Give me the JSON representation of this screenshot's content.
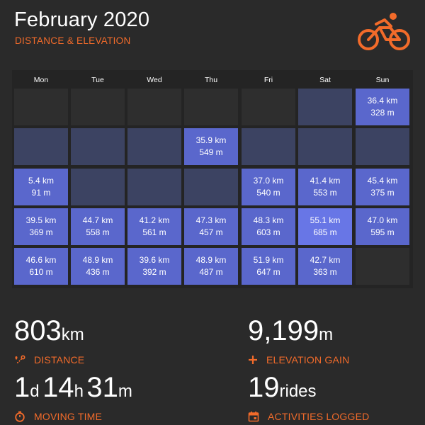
{
  "header": {
    "title": "February 2020",
    "subtitle": "DISTANCE & ELEVATION",
    "logo_icon": "cyclist-icon"
  },
  "colors": {
    "accent": "#f26b2a",
    "background": "#2a2a2a",
    "cell_empty": "#2e2e2e",
    "cell_no_ride": "#3c4362",
    "cell_ride": "#5a67cc",
    "cell_ride_high": "#6876e6"
  },
  "calendar": {
    "weekdays": [
      "Mon",
      "Tue",
      "Wed",
      "Thu",
      "Fri",
      "Sat",
      "Sun"
    ],
    "weeks": [
      [
        {
          "state": "empty"
        },
        {
          "state": "empty"
        },
        {
          "state": "empty"
        },
        {
          "state": "empty"
        },
        {
          "state": "empty"
        },
        {
          "state": "no-ride"
        },
        {
          "state": "ride",
          "distance": "36.4 km",
          "elevation": "328 m"
        }
      ],
      [
        {
          "state": "no-ride"
        },
        {
          "state": "no-ride"
        },
        {
          "state": "no-ride"
        },
        {
          "state": "ride",
          "distance": "35.9 km",
          "elevation": "549 m"
        },
        {
          "state": "no-ride"
        },
        {
          "state": "no-ride"
        },
        {
          "state": "no-ride"
        }
      ],
      [
        {
          "state": "ride",
          "distance": "5.4 km",
          "elevation": "91 m"
        },
        {
          "state": "no-ride"
        },
        {
          "state": "no-ride"
        },
        {
          "state": "no-ride"
        },
        {
          "state": "ride",
          "distance": "37.0 km",
          "elevation": "540 m"
        },
        {
          "state": "ride",
          "distance": "41.4 km",
          "elevation": "553 m"
        },
        {
          "state": "ride",
          "distance": "45.4 km",
          "elevation": "375 m"
        }
      ],
      [
        {
          "state": "ride",
          "distance": "39.5 km",
          "elevation": "369 m"
        },
        {
          "state": "ride",
          "distance": "44.7 km",
          "elevation": "558 m"
        },
        {
          "state": "ride",
          "distance": "41.2 km",
          "elevation": "561 m"
        },
        {
          "state": "ride",
          "distance": "47.3 km",
          "elevation": "457 m"
        },
        {
          "state": "ride",
          "distance": "48.3 km",
          "elevation": "603 m"
        },
        {
          "state": "ride",
          "distance": "55.1 km",
          "elevation": "685 m"
        },
        {
          "state": "ride",
          "distance": "47.0 km",
          "elevation": "595 m"
        }
      ],
      [
        {
          "state": "ride",
          "distance": "46.6 km",
          "elevation": "610 m"
        },
        {
          "state": "ride",
          "distance": "48.9 km",
          "elevation": "436 m"
        },
        {
          "state": "ride",
          "distance": "39.6 km",
          "elevation": "392 m"
        },
        {
          "state": "ride",
          "distance": "48.9 km",
          "elevation": "487 m"
        },
        {
          "state": "ride",
          "distance": "51.9 km",
          "elevation": "647 m"
        },
        {
          "state": "ride",
          "distance": "42.7 km",
          "elevation": "363 m"
        },
        {
          "state": "empty"
        }
      ]
    ]
  },
  "stats": {
    "distance": {
      "value": "803",
      "unit": "km",
      "label": "DISTANCE",
      "icon": "route-pin-icon"
    },
    "elevation": {
      "value": "9,199",
      "unit": "m",
      "label": "ELEVATION GAIN",
      "icon": "plus-icon"
    },
    "moving_time": {
      "days": "1",
      "days_unit": "d",
      "hours": "14",
      "hours_unit": "h",
      "minutes": "31",
      "minutes_unit": "m",
      "label": "MOVING TIME",
      "icon": "stopwatch-icon"
    },
    "activities": {
      "value": "19",
      "unit": "rides",
      "label": "ACTIVITIES LOGGED",
      "icon": "calendar-icon"
    }
  }
}
